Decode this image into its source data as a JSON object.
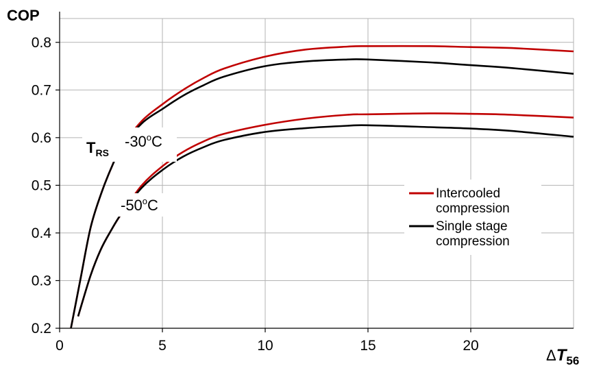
{
  "chart_data": {
    "type": "line",
    "ylabel": "COP",
    "xlabel_symbol": "Δ",
    "xlabel_var": "T",
    "xlabel_sub": "56",
    "xlim": [
      0,
      25
    ],
    "ylim": [
      0.2,
      0.85
    ],
    "x_ticks": [
      0,
      5,
      10,
      15,
      20
    ],
    "x_tick_labels": [
      "0",
      "5",
      "10",
      "15",
      "20"
    ],
    "y_ticks": [
      0.2,
      0.3,
      0.4,
      0.5,
      0.6,
      0.7,
      0.8
    ],
    "y_tick_labels": [
      "0.2",
      "0.3",
      "0.4",
      "0.5",
      "0.6",
      "0.7",
      "0.8"
    ],
    "grid": true,
    "legend_position": "right",
    "colors": {
      "intercooled": "#c00000",
      "single": "#000000",
      "grid": "#b3b3b3"
    },
    "annotations": {
      "trs_main": "T",
      "trs_sub": "RS",
      "upper_prefix": "-30",
      "upper_sup": "o",
      "upper_unit": "C",
      "lower_prefix": "-50",
      "lower_sup": "o",
      "lower_unit": "C"
    },
    "legend": [
      {
        "line1": "Intercooled",
        "line2": "compression",
        "color": "#c00000"
      },
      {
        "line1": "Single stage",
        "line2": "compression",
        "color": "#000000"
      }
    ],
    "series": [
      {
        "group": "-30°C",
        "kind": "intercooled",
        "color": "#c00000",
        "x": [
          0.55,
          1.0,
          1.5,
          2.0,
          2.5,
          3.0,
          4.0,
          5.0,
          6.0,
          7.0,
          8.0,
          10.0,
          12.0,
          14.0,
          15.0,
          18.0,
          20.0,
          22.0,
          25.0
        ],
        "y": [
          0.2,
          0.3,
          0.41,
          0.48,
          0.535,
          0.58,
          0.635,
          0.67,
          0.7,
          0.725,
          0.745,
          0.77,
          0.785,
          0.791,
          0.792,
          0.792,
          0.79,
          0.788,
          0.781
        ]
      },
      {
        "group": "-30°C",
        "kind": "single",
        "color": "#000000",
        "x": [
          0.55,
          1.0,
          1.5,
          2.0,
          2.5,
          3.0,
          4.0,
          5.0,
          6.0,
          7.0,
          8.0,
          10.0,
          12.0,
          14.0,
          15.0,
          18.0,
          20.0,
          22.0,
          25.0
        ],
        "y": [
          0.2,
          0.3,
          0.41,
          0.48,
          0.535,
          0.578,
          0.63,
          0.66,
          0.688,
          0.71,
          0.728,
          0.75,
          0.76,
          0.764,
          0.764,
          0.758,
          0.752,
          0.746,
          0.734
        ]
      },
      {
        "group": "-50°C",
        "kind": "intercooled",
        "color": "#c00000",
        "x": [
          0.9,
          1.5,
          2.0,
          2.5,
          3.0,
          4.0,
          5.0,
          6.0,
          7.0,
          8.0,
          10.0,
          12.0,
          14.0,
          15.0,
          18.0,
          20.0,
          22.0,
          25.0
        ],
        "y": [
          0.225,
          0.31,
          0.365,
          0.405,
          0.44,
          0.5,
          0.54,
          0.57,
          0.592,
          0.608,
          0.627,
          0.64,
          0.648,
          0.649,
          0.651,
          0.65,
          0.648,
          0.642
        ]
      },
      {
        "group": "-50°C",
        "kind": "single",
        "color": "#000000",
        "x": [
          0.9,
          1.5,
          2.0,
          2.5,
          3.0,
          4.0,
          5.0,
          6.0,
          7.0,
          8.0,
          10.0,
          12.0,
          14.0,
          15.0,
          18.0,
          20.0,
          22.0,
          25.0
        ],
        "y": [
          0.225,
          0.31,
          0.365,
          0.405,
          0.44,
          0.495,
          0.532,
          0.56,
          0.58,
          0.595,
          0.612,
          0.62,
          0.625,
          0.626,
          0.622,
          0.619,
          0.614,
          0.602
        ]
      }
    ]
  }
}
